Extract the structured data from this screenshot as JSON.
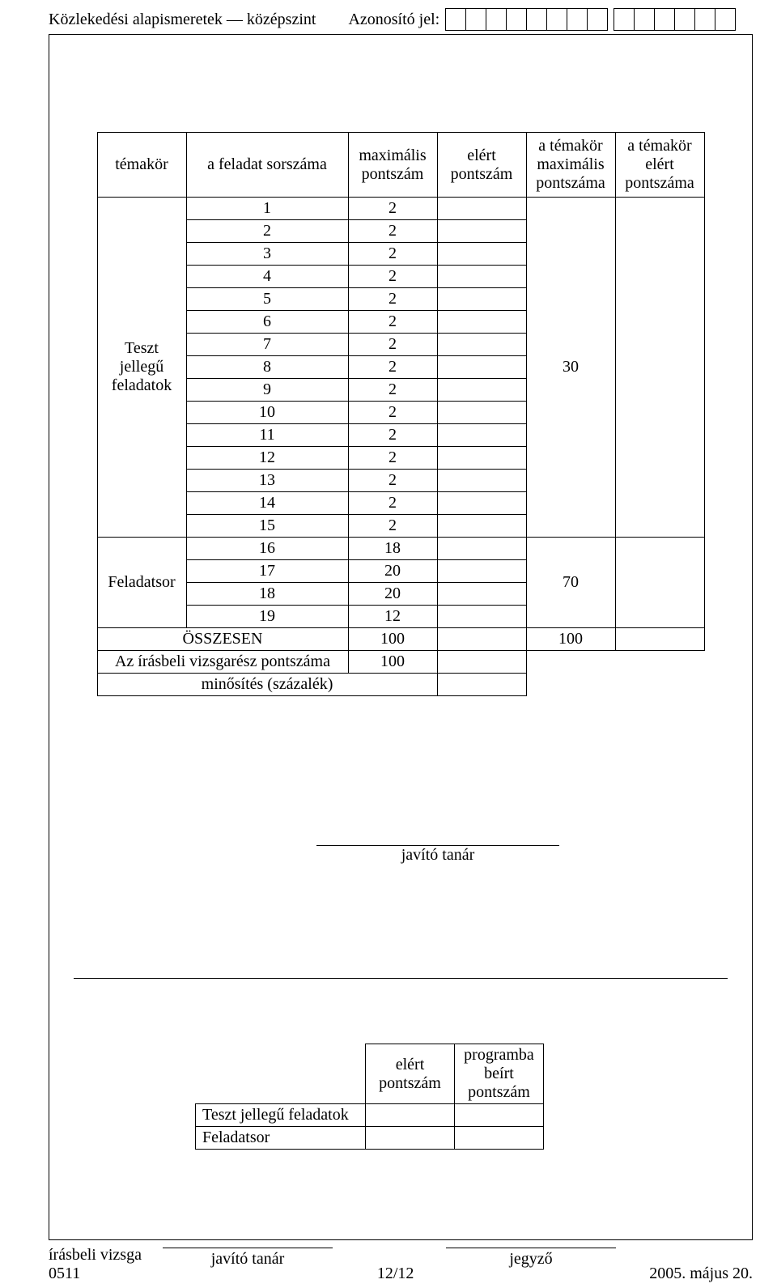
{
  "header": {
    "subject_level": "Közlekedési alapismeretek — középszint",
    "id_label": "Azonosító jel:",
    "id_box_count": 14,
    "id_gap_after_index": 7
  },
  "main_table": {
    "headers": {
      "col1": "témakör",
      "col2": "a feladat sorszáma",
      "col3": "maximális pontszám",
      "col4": "elért pontszám",
      "col5": "a témakör maximális pontszáma",
      "col6": "a témakör elért pontszáma"
    },
    "group1": {
      "label": "Teszt jellegű feladatok",
      "max_topic": "30",
      "rows": [
        {
          "n": "1",
          "m": "2"
        },
        {
          "n": "2",
          "m": "2"
        },
        {
          "n": "3",
          "m": "2"
        },
        {
          "n": "4",
          "m": "2"
        },
        {
          "n": "5",
          "m": "2"
        },
        {
          "n": "6",
          "m": "2"
        },
        {
          "n": "7",
          "m": "2"
        },
        {
          "n": "8",
          "m": "2"
        },
        {
          "n": "9",
          "m": "2"
        },
        {
          "n": "10",
          "m": "2"
        },
        {
          "n": "11",
          "m": "2"
        },
        {
          "n": "12",
          "m": "2"
        },
        {
          "n": "13",
          "m": "2"
        },
        {
          "n": "14",
          "m": "2"
        },
        {
          "n": "15",
          "m": "2"
        }
      ]
    },
    "group2": {
      "label": "Feladatsor",
      "max_topic": "70",
      "rows": [
        {
          "n": "16",
          "m": "18"
        },
        {
          "n": "17",
          "m": "20"
        },
        {
          "n": "18",
          "m": "20"
        },
        {
          "n": "19",
          "m": "12"
        }
      ]
    },
    "total_row": {
      "label": "ÖSSZESEN",
      "max": "100",
      "topic_max": "100"
    },
    "written_row": {
      "label": "Az írásbeli vizsgarész pontszáma",
      "max": "100"
    },
    "grade_row": {
      "label": "minősítés (százalék)"
    }
  },
  "signatures": {
    "corrector": "javító tanár",
    "registrar": "jegyző"
  },
  "small_table": {
    "headers": {
      "c1": "elért pontszám",
      "c2": "programba beírt pontszám"
    },
    "row1": "Teszt jellegű feladatok",
    "row2": "Feladatsor"
  },
  "footer": {
    "left_line1": "írásbeli vizsga",
    "left_line2": "0511",
    "center": "12/12",
    "right": "2005. május 20."
  }
}
